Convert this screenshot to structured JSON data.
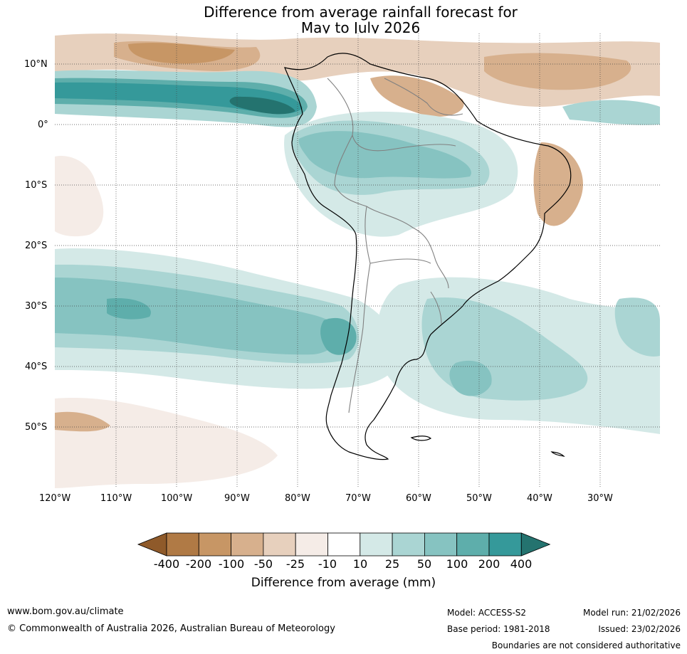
{
  "title": {
    "line1": "Difference from average rainfall forecast for",
    "line2": "May to July 2026"
  },
  "map": {
    "lat_labels": [
      "10°N",
      "0°",
      "10°S",
      "20°S",
      "30°S",
      "40°S",
      "50°S"
    ],
    "lon_labels": [
      "120°W",
      "110°W",
      "100°W",
      "90°W",
      "80°W",
      "70°W",
      "60°W",
      "50°W",
      "40°W",
      "30°W"
    ]
  },
  "colorbar": {
    "tick_labels": [
      "-400",
      "-200",
      "-100",
      "-50",
      "-25",
      "-10",
      "10",
      "25",
      "50",
      "100",
      "200",
      "400"
    ],
    "colors": [
      "#8f5a2a",
      "#b07a45",
      "#c79665",
      "#d7b08d",
      "#e7d0bd",
      "#f5ece7",
      "#ffffff",
      "#d4e9e7",
      "#aad5d3",
      "#86c3c1",
      "#5eaeab",
      "#35999a",
      "#24736f"
    ],
    "label": "Difference from average (mm)"
  },
  "footer": {
    "url": "www.bom.gov.au/climate",
    "copyright": "© Commonwealth of Australia 2026, Australian Bureau of Meteorology",
    "model": "Model: ACCESS-S2",
    "base_period": "Base period: 1981-2018",
    "model_run": "Model run: 21/02/2026",
    "issued": "Issued: 23/02/2026",
    "disclaimer": "Boundaries are not considered authoritative"
  }
}
